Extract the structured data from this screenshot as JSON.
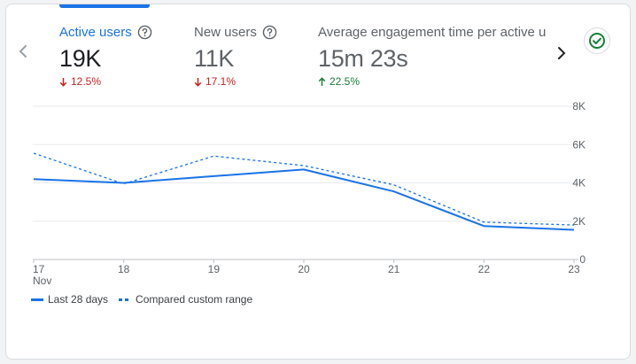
{
  "nav": {
    "prev_icon": "chevron-left-icon",
    "next_icon": "chevron-right-icon",
    "status_icon": "check-circle-icon",
    "status_color": "#188038"
  },
  "metrics": [
    {
      "label": "Active users",
      "value": "19K",
      "change": "12.5%",
      "direction": "down",
      "active": true
    },
    {
      "label": "New users",
      "value": "11K",
      "change": "17.1%",
      "direction": "down",
      "active": false
    },
    {
      "label": "Average engagement time per active us",
      "value": "15m 23s",
      "change": "22.5%",
      "direction": "up",
      "active": false
    }
  ],
  "colors": {
    "accent": "#1a73e8",
    "negative": "#c5221f",
    "positive": "#188038",
    "grid": "#e8eaed"
  },
  "chart_data": {
    "type": "line",
    "x": [
      "17",
      "18",
      "19",
      "20",
      "21",
      "22",
      "23"
    ],
    "x_sublabel": "Nov",
    "y_ticks": [
      "0",
      "2K",
      "4K",
      "6K",
      "8K"
    ],
    "ylim": [
      0,
      8000
    ],
    "series": [
      {
        "name": "Last 28 days",
        "style": "solid",
        "values": [
          4200,
          4000,
          4350,
          4700,
          3550,
          1750,
          1550
        ]
      },
      {
        "name": "Compared custom range",
        "style": "dashed",
        "values": [
          5550,
          3950,
          5400,
          4900,
          3900,
          1950,
          1800
        ]
      }
    ],
    "legend_position": "bottom-left",
    "grid": true
  }
}
